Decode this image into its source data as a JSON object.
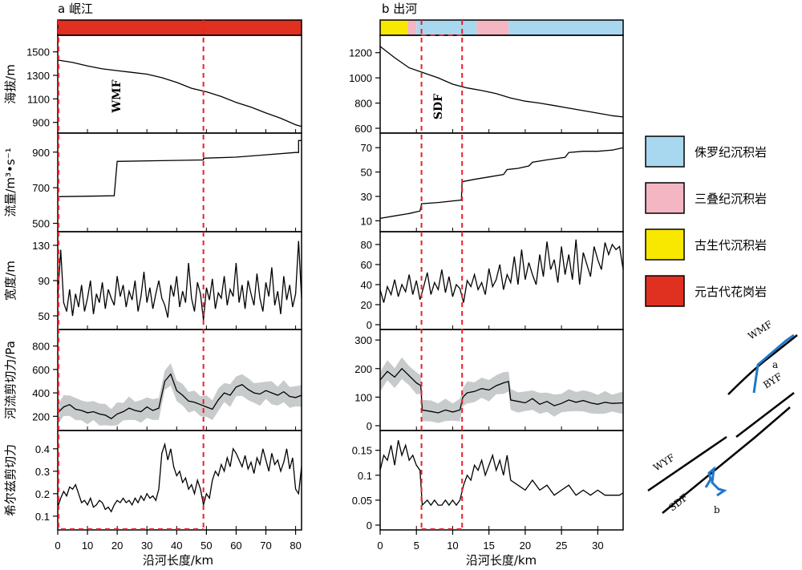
{
  "left_title": "a 岷江",
  "right_title": "b 出河",
  "y_labels": [
    "海拔/m",
    "流量/m³•s⁻¹",
    "宽度/m",
    "河流剪切力/Pa",
    "希尔兹剪切力"
  ],
  "x_label": "沿河长度/km",
  "left_fault_label": "WMF",
  "right_fault_label": "SDF",
  "legend": [
    {
      "label": "侏罗纪沉积岩",
      "color": "#a8d8f0"
    },
    {
      "label": "三叠纪沉积岩",
      "color": "#f4b6c2"
    },
    {
      "label": "古生代沉积岩",
      "color": "#f8e800"
    },
    {
      "label": "元古代花岗岩",
      "color": "#e03020"
    }
  ],
  "map_labels": {
    "wmf": "WMF",
    "byf": "BYF",
    "wyf": "WYF",
    "sdf": "SDF",
    "a": "a",
    "b": "b"
  },
  "chart_data": [
    {
      "type": "line",
      "title": "a 岷江",
      "xlabel": "沿河长度/km",
      "xlim": [
        0,
        82
      ],
      "xticks": [
        0,
        10,
        20,
        30,
        40,
        50,
        60,
        70,
        80
      ],
      "lithology_bar": [
        {
          "from": 0,
          "to": 82,
          "unit": "元古代花岗岩",
          "color": "#e03020"
        }
      ],
      "highlight_x": [
        49
      ],
      "panels": [
        {
          "ylabel": "海拔/m",
          "ylim": [
            850,
            1600
          ],
          "yticks": [
            900,
            1100,
            1300,
            1500
          ],
          "x": [
            0,
            5,
            10,
            15,
            20,
            25,
            30,
            35,
            40,
            45,
            50,
            55,
            60,
            65,
            70,
            75,
            80,
            82
          ],
          "y": [
            1430,
            1410,
            1380,
            1355,
            1340,
            1325,
            1310,
            1280,
            1240,
            1190,
            1160,
            1120,
            1070,
            1030,
            980,
            935,
            880,
            865
          ]
        },
        {
          "ylabel": "流量/m³•s⁻¹",
          "ylim": [
            480,
            980
          ],
          "yticks": [
            500,
            700,
            900
          ],
          "x": [
            0,
            19,
            19,
            20,
            35,
            49,
            49,
            60,
            70,
            80,
            81,
            81,
            82
          ],
          "y": [
            650,
            655,
            655,
            848,
            852,
            856,
            866,
            872,
            885,
            898,
            898,
            965,
            965
          ]
        },
        {
          "ylabel": "宽度/m",
          "ylim": [
            40,
            140
          ],
          "yticks": [
            50,
            90,
            130
          ],
          "x": [
            0,
            1,
            2,
            3,
            4,
            5,
            6,
            7,
            8,
            9,
            10,
            11,
            12,
            13,
            14,
            15,
            16,
            17,
            18,
            19,
            20,
            21,
            22,
            23,
            24,
            25,
            26,
            27,
            28,
            29,
            30,
            31,
            32,
            33,
            34,
            35,
            36,
            37,
            38,
            39,
            40,
            41,
            42,
            43,
            44,
            45,
            46,
            47,
            48,
            49,
            50,
            51,
            52,
            53,
            54,
            55,
            56,
            57,
            58,
            59,
            60,
            61,
            62,
            63,
            64,
            65,
            66,
            67,
            68,
            69,
            70,
            71,
            72,
            73,
            74,
            75,
            76,
            77,
            78,
            79,
            80,
            81,
            82
          ],
          "y": [
            70,
            125,
            65,
            55,
            80,
            50,
            75,
            60,
            85,
            55,
            70,
            90,
            52,
            75,
            65,
            88,
            58,
            80,
            70,
            62,
            95,
            72,
            85,
            60,
            78,
            68,
            90,
            55,
            72,
            100,
            65,
            82,
            58,
            75,
            90,
            70,
            62,
            48,
            85,
            72,
            95,
            60,
            78,
            65,
            110,
            70,
            55,
            88,
            75,
            45,
            82,
            68,
            92,
            58,
            76,
            70,
            95,
            62,
            80,
            72,
            110,
            65,
            85,
            58,
            90,
            75,
            62,
            98,
            70,
            55,
            88,
            72,
            105,
            62,
            78,
            52,
            95,
            68,
            85,
            60,
            75,
            135,
            70
          ]
        },
        {
          "ylabel": "河流剪切力/Pa",
          "ylim": [
            120,
            900
          ],
          "yticks": [
            200,
            400,
            600,
            800
          ],
          "band": 100,
          "x": [
            0,
            2,
            4,
            6,
            8,
            10,
            12,
            14,
            16,
            18,
            20,
            22,
            24,
            26,
            28,
            30,
            32,
            34,
            36,
            38,
            40,
            42,
            44,
            46,
            48,
            50,
            52,
            54,
            56,
            58,
            60,
            62,
            64,
            66,
            68,
            70,
            72,
            74,
            76,
            78,
            80,
            82
          ],
          "y": [
            230,
            280,
            300,
            260,
            250,
            230,
            240,
            220,
            210,
            180,
            220,
            240,
            270,
            250,
            240,
            280,
            250,
            270,
            500,
            560,
            420,
            380,
            330,
            320,
            300,
            280,
            260,
            340,
            400,
            380,
            450,
            470,
            430,
            400,
            390,
            420,
            400,
            380,
            410,
            370,
            360,
            380
          ]
        },
        {
          "ylabel": "希尔兹剪切力",
          "ylim": [
            0.06,
            0.46
          ],
          "yticks": [
            0.1,
            0.2,
            0.3,
            0.4
          ],
          "x": [
            0,
            1,
            2,
            3,
            4,
            5,
            6,
            7,
            8,
            9,
            10,
            11,
            12,
            13,
            14,
            15,
            16,
            17,
            18,
            19,
            20,
            21,
            22,
            23,
            24,
            25,
            26,
            27,
            28,
            29,
            30,
            31,
            32,
            33,
            34,
            35,
            36,
            37,
            38,
            39,
            40,
            41,
            42,
            43,
            44,
            45,
            46,
            47,
            48,
            49,
            50,
            51,
            52,
            53,
            54,
            55,
            56,
            57,
            58,
            59,
            60,
            61,
            62,
            63,
            64,
            65,
            66,
            67,
            68,
            69,
            70,
            71,
            72,
            73,
            74,
            75,
            76,
            77,
            78,
            79,
            80,
            81,
            82
          ],
          "y": [
            0.14,
            0.18,
            0.21,
            0.19,
            0.23,
            0.22,
            0.24,
            0.2,
            0.16,
            0.17,
            0.15,
            0.18,
            0.14,
            0.15,
            0.17,
            0.16,
            0.13,
            0.14,
            0.12,
            0.15,
            0.17,
            0.16,
            0.18,
            0.16,
            0.17,
            0.15,
            0.18,
            0.16,
            0.19,
            0.17,
            0.2,
            0.18,
            0.19,
            0.17,
            0.22,
            0.38,
            0.42,
            0.35,
            0.4,
            0.32,
            0.28,
            0.3,
            0.25,
            0.27,
            0.22,
            0.24,
            0.2,
            0.26,
            0.22,
            0.15,
            0.2,
            0.18,
            0.26,
            0.3,
            0.28,
            0.33,
            0.3,
            0.36,
            0.32,
            0.4,
            0.38,
            0.35,
            0.32,
            0.37,
            0.31,
            0.34,
            0.29,
            0.36,
            0.33,
            0.4,
            0.35,
            0.3,
            0.38,
            0.33,
            0.35,
            0.3,
            0.34,
            0.4,
            0.31,
            0.36,
            0.22,
            0.2,
            0.32
          ]
        }
      ]
    },
    {
      "type": "line",
      "title": "b 出河",
      "xlabel": "沿河长度/km",
      "xlim": [
        0,
        33.5
      ],
      "xticks": [
        0,
        5,
        10,
        15,
        20,
        25,
        30
      ],
      "lithology_bar": [
        {
          "from": 0,
          "to": 3.8,
          "unit": "古生代沉积岩",
          "color": "#f8e800"
        },
        {
          "from": 3.8,
          "to": 5,
          "unit": "三叠纪沉积岩",
          "color": "#f4b6c2"
        },
        {
          "from": 5,
          "to": 13.3,
          "unit": "侏罗纪沉积岩",
          "color": "#a8d8f0"
        },
        {
          "from": 13.3,
          "to": 17.7,
          "unit": "三叠纪沉积岩",
          "color": "#f4b6c2"
        },
        {
          "from": 17.7,
          "to": 33.5,
          "unit": "侏罗纪沉积岩",
          "color": "#a8d8f0"
        }
      ],
      "highlight_x": [
        5.7,
        11.3
      ],
      "panels": [
        {
          "ylabel": "海拔/m",
          "ylim": [
            600,
            1300
          ],
          "yticks": [
            600,
            800,
            1000,
            1200
          ],
          "x": [
            0,
            2,
            4,
            6,
            8,
            10,
            12,
            14,
            16,
            18,
            20,
            22,
            24,
            26,
            28,
            30,
            32,
            33.5
          ],
          "y": [
            1250,
            1160,
            1080,
            1040,
            1000,
            950,
            920,
            900,
            875,
            840,
            815,
            800,
            780,
            760,
            740,
            720,
            700,
            690
          ]
        },
        {
          "ylabel": "流量/m³•s⁻¹",
          "ylim": [
            5,
            78
          ],
          "yticks": [
            10,
            30,
            50,
            70
          ],
          "x": [
            0,
            2,
            4,
            5.5,
            5.7,
            8,
            11.2,
            11.3,
            13,
            15,
            17,
            17.5,
            19,
            20.5,
            21,
            23,
            25.5,
            26,
            28,
            30,
            32,
            33.5
          ],
          "y": [
            12,
            14,
            16,
            18,
            24,
            25,
            27,
            42,
            44,
            46,
            48,
            52,
            53,
            55,
            58,
            60,
            62,
            66,
            67,
            67,
            68,
            70
          ]
        },
        {
          "ylabel": "宽度/m",
          "ylim": [
            0,
            88
          ],
          "yticks": [
            0,
            20,
            40,
            60,
            80
          ],
          "x": [
            0,
            0.5,
            1,
            1.5,
            2,
            2.5,
            3,
            3.5,
            4,
            4.5,
            5,
            5.5,
            6,
            6.5,
            7,
            7.5,
            8,
            8.5,
            9,
            9.5,
            10,
            10.5,
            11,
            11.5,
            12,
            12.5,
            13,
            13.5,
            14,
            14.5,
            15,
            15.5,
            16,
            16.5,
            17,
            17.5,
            18,
            18.5,
            19,
            19.5,
            20,
            20.5,
            21,
            21.5,
            22,
            22.5,
            23,
            23.5,
            24,
            24.5,
            25,
            25.5,
            26,
            26.5,
            27,
            27.5,
            28,
            28.5,
            29,
            29.5,
            30,
            30.5,
            31,
            31.5,
            32,
            32.5,
            33,
            33.5
          ],
          "y": [
            35,
            22,
            38,
            30,
            45,
            28,
            40,
            33,
            50,
            30,
            44,
            25,
            38,
            52,
            30,
            42,
            35,
            55,
            32,
            48,
            28,
            40,
            36,
            22,
            44,
            38,
            50,
            35,
            42,
            30,
            56,
            38,
            45,
            60,
            35,
            50,
            42,
            68,
            40,
            75,
            45,
            62,
            50,
            40,
            70,
            48,
            83,
            55,
            65,
            42,
            78,
            50,
            70,
            45,
            85,
            40,
            72,
            60,
            48,
            78,
            65,
            55,
            82,
            70,
            80,
            75,
            78,
            55
          ]
        },
        {
          "ylabel": "河流剪切力/Pa",
          "ylim": [
            0,
            320
          ],
          "yticks": [
            0,
            100,
            200,
            300
          ],
          "band": 40,
          "x": [
            0,
            1,
            2,
            3,
            4,
            5,
            5.6,
            5.8,
            7,
            8,
            9,
            10,
            11,
            11.4,
            12,
            13,
            14,
            15,
            16,
            17,
            17.7,
            18,
            19,
            20,
            21,
            22,
            23,
            24,
            25,
            26,
            27,
            28,
            29,
            30,
            31,
            32,
            33.5
          ],
          "y": [
            160,
            190,
            170,
            200,
            175,
            150,
            140,
            55,
            50,
            45,
            55,
            48,
            55,
            100,
            115,
            120,
            130,
            125,
            140,
            150,
            155,
            90,
            85,
            80,
            95,
            75,
            85,
            70,
            78,
            90,
            82,
            88,
            80,
            75,
            82,
            78,
            80
          ]
        },
        {
          "ylabel": "希尔兹剪切力",
          "ylim": [
            0,
            0.18
          ],
          "yticks": [
            0,
            0.05,
            0.1,
            0.15
          ],
          "x": [
            0,
            0.5,
            1,
            1.5,
            2,
            2.5,
            3,
            3.5,
            4,
            4.5,
            5,
            5.5,
            5.8,
            6.5,
            7,
            7.5,
            8,
            8.5,
            9,
            9.5,
            10,
            10.5,
            11,
            11.5,
            12,
            12.5,
            13,
            13.5,
            14,
            14.5,
            15,
            15.5,
            16,
            16.5,
            17,
            17.5,
            18,
            19,
            20,
            21,
            22,
            23,
            24,
            25,
            26,
            27,
            28,
            29,
            30,
            31,
            32,
            33,
            33.5
          ],
          "y": [
            0.11,
            0.14,
            0.13,
            0.16,
            0.12,
            0.17,
            0.14,
            0.16,
            0.13,
            0.14,
            0.12,
            0.11,
            0.04,
            0.05,
            0.04,
            0.05,
            0.04,
            0.04,
            0.05,
            0.04,
            0.05,
            0.04,
            0.05,
            0.08,
            0.1,
            0.09,
            0.12,
            0.11,
            0.13,
            0.1,
            0.12,
            0.14,
            0.11,
            0.13,
            0.1,
            0.14,
            0.09,
            0.08,
            0.07,
            0.09,
            0.07,
            0.08,
            0.06,
            0.07,
            0.08,
            0.06,
            0.07,
            0.06,
            0.07,
            0.06,
            0.06,
            0.06,
            0.065
          ]
        }
      ]
    }
  ]
}
